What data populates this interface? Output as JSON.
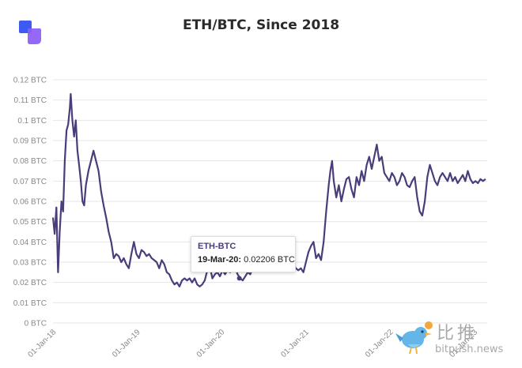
{
  "title": "ETH/BTC, Since 2018",
  "colors": {
    "line": "#4b3c7a",
    "grid": "#e6e6e6",
    "logo_blue": "#3d5bf0",
    "logo_purple": "#8b5cf6"
  },
  "chart_data": {
    "type": "line",
    "title": "ETH/BTC, Since 2018",
    "xlabel": "",
    "ylabel": "",
    "ylim": [
      0,
      0.12
    ],
    "y_ticks": [
      "0 BTC",
      "0.01 BTC",
      "0.02 BTC",
      "0.03 BTC",
      "0.04 BTC",
      "0.05 BTC",
      "0.06 BTC",
      "0.07 BTC",
      "0.08 BTC",
      "0.09 BTC",
      "0.1 BTC",
      "0.11 BTC",
      "0.12 BTC"
    ],
    "x_ticks": [
      "01-Jan-18",
      "01-Jan-19",
      "01-Jan-20",
      "01-Jan-21",
      "01-Jan-22",
      "01-Jan-23"
    ],
    "x_tick_years": [
      0,
      1,
      2,
      3,
      4,
      5
    ],
    "xlim_years": [
      0,
      5.15
    ],
    "series": [
      {
        "name": "ETH-BTC",
        "points": [
          [
            0.0,
            0.052
          ],
          [
            0.02,
            0.044
          ],
          [
            0.04,
            0.057
          ],
          [
            0.06,
            0.025
          ],
          [
            0.08,
            0.045
          ],
          [
            0.1,
            0.06
          ],
          [
            0.12,
            0.055
          ],
          [
            0.14,
            0.08
          ],
          [
            0.16,
            0.095
          ],
          [
            0.18,
            0.098
          ],
          [
            0.2,
            0.106
          ],
          [
            0.21,
            0.113
          ],
          [
            0.23,
            0.1
          ],
          [
            0.25,
            0.092
          ],
          [
            0.27,
            0.1
          ],
          [
            0.29,
            0.085
          ],
          [
            0.31,
            0.078
          ],
          [
            0.33,
            0.07
          ],
          [
            0.35,
            0.06
          ],
          [
            0.37,
            0.058
          ],
          [
            0.39,
            0.068
          ],
          [
            0.42,
            0.075
          ],
          [
            0.45,
            0.08
          ],
          [
            0.48,
            0.085
          ],
          [
            0.51,
            0.08
          ],
          [
            0.54,
            0.075
          ],
          [
            0.57,
            0.065
          ],
          [
            0.6,
            0.058
          ],
          [
            0.63,
            0.052
          ],
          [
            0.66,
            0.045
          ],
          [
            0.69,
            0.04
          ],
          [
            0.72,
            0.032
          ],
          [
            0.75,
            0.034
          ],
          [
            0.78,
            0.033
          ],
          [
            0.81,
            0.03
          ],
          [
            0.84,
            0.032
          ],
          [
            0.87,
            0.029
          ],
          [
            0.9,
            0.027
          ],
          [
            0.93,
            0.034
          ],
          [
            0.96,
            0.04
          ],
          [
            0.99,
            0.034
          ],
          [
            1.02,
            0.032
          ],
          [
            1.05,
            0.036
          ],
          [
            1.08,
            0.035
          ],
          [
            1.11,
            0.033
          ],
          [
            1.14,
            0.034
          ],
          [
            1.17,
            0.032
          ],
          [
            1.2,
            0.031
          ],
          [
            1.23,
            0.03
          ],
          [
            1.26,
            0.027
          ],
          [
            1.29,
            0.031
          ],
          [
            1.32,
            0.029
          ],
          [
            1.35,
            0.025
          ],
          [
            1.38,
            0.024
          ],
          [
            1.41,
            0.021
          ],
          [
            1.44,
            0.019
          ],
          [
            1.47,
            0.02
          ],
          [
            1.5,
            0.018
          ],
          [
            1.53,
            0.021
          ],
          [
            1.56,
            0.022
          ],
          [
            1.59,
            0.021
          ],
          [
            1.62,
            0.022
          ],
          [
            1.65,
            0.02
          ],
          [
            1.68,
            0.022
          ],
          [
            1.71,
            0.019
          ],
          [
            1.74,
            0.018
          ],
          [
            1.77,
            0.019
          ],
          [
            1.8,
            0.021
          ],
          [
            1.83,
            0.026
          ],
          [
            1.86,
            0.028
          ],
          [
            1.89,
            0.022
          ],
          [
            1.92,
            0.024
          ],
          [
            1.95,
            0.025
          ],
          [
            1.98,
            0.023
          ],
          [
            2.01,
            0.026
          ],
          [
            2.04,
            0.024
          ],
          [
            2.07,
            0.026
          ],
          [
            2.1,
            0.025
          ],
          [
            2.13,
            0.026
          ],
          [
            2.16,
            0.027
          ],
          [
            2.19,
            0.024
          ],
          [
            2.22,
            0.022
          ],
          [
            2.25,
            0.021
          ],
          [
            2.28,
            0.023
          ],
          [
            2.31,
            0.025
          ],
          [
            2.34,
            0.024
          ],
          [
            2.37,
            0.027
          ],
          [
            2.4,
            0.028
          ],
          [
            2.43,
            0.03
          ],
          [
            2.46,
            0.032
          ],
          [
            2.49,
            0.034
          ],
          [
            2.52,
            0.031
          ],
          [
            2.55,
            0.029
          ],
          [
            2.58,
            0.031
          ],
          [
            2.61,
            0.033
          ],
          [
            2.64,
            0.035
          ],
          [
            2.67,
            0.034
          ],
          [
            2.7,
            0.032
          ],
          [
            2.73,
            0.031
          ],
          [
            2.76,
            0.03
          ],
          [
            2.79,
            0.028
          ],
          [
            2.82,
            0.03
          ],
          [
            2.85,
            0.029
          ],
          [
            2.88,
            0.027
          ],
          [
            2.91,
            0.026
          ],
          [
            2.94,
            0.027
          ],
          [
            2.97,
            0.025
          ],
          [
            3.0,
            0.03
          ],
          [
            3.03,
            0.035
          ],
          [
            3.06,
            0.038
          ],
          [
            3.09,
            0.04
          ],
          [
            3.12,
            0.032
          ],
          [
            3.15,
            0.034
          ],
          [
            3.18,
            0.031
          ],
          [
            3.21,
            0.04
          ],
          [
            3.24,
            0.055
          ],
          [
            3.27,
            0.068
          ],
          [
            3.29,
            0.075
          ],
          [
            3.31,
            0.08
          ],
          [
            3.33,
            0.07
          ],
          [
            3.36,
            0.062
          ],
          [
            3.39,
            0.068
          ],
          [
            3.42,
            0.06
          ],
          [
            3.45,
            0.066
          ],
          [
            3.48,
            0.071
          ],
          [
            3.51,
            0.072
          ],
          [
            3.54,
            0.066
          ],
          [
            3.57,
            0.062
          ],
          [
            3.6,
            0.072
          ],
          [
            3.63,
            0.068
          ],
          [
            3.66,
            0.075
          ],
          [
            3.69,
            0.07
          ],
          [
            3.72,
            0.078
          ],
          [
            3.75,
            0.082
          ],
          [
            3.78,
            0.076
          ],
          [
            3.81,
            0.082
          ],
          [
            3.84,
            0.088
          ],
          [
            3.87,
            0.08
          ],
          [
            3.9,
            0.082
          ],
          [
            3.93,
            0.074
          ],
          [
            3.96,
            0.072
          ],
          [
            3.99,
            0.07
          ],
          [
            4.02,
            0.074
          ],
          [
            4.05,
            0.072
          ],
          [
            4.08,
            0.068
          ],
          [
            4.11,
            0.07
          ],
          [
            4.14,
            0.074
          ],
          [
            4.17,
            0.072
          ],
          [
            4.2,
            0.068
          ],
          [
            4.23,
            0.067
          ],
          [
            4.26,
            0.07
          ],
          [
            4.29,
            0.072
          ],
          [
            4.32,
            0.062
          ],
          [
            4.35,
            0.055
          ],
          [
            4.38,
            0.053
          ],
          [
            4.41,
            0.06
          ],
          [
            4.44,
            0.072
          ],
          [
            4.47,
            0.078
          ],
          [
            4.5,
            0.074
          ],
          [
            4.53,
            0.07
          ],
          [
            4.56,
            0.068
          ],
          [
            4.59,
            0.072
          ],
          [
            4.62,
            0.074
          ],
          [
            4.65,
            0.072
          ],
          [
            4.68,
            0.07
          ],
          [
            4.71,
            0.074
          ],
          [
            4.74,
            0.07
          ],
          [
            4.77,
            0.072
          ],
          [
            4.8,
            0.069
          ],
          [
            4.83,
            0.071
          ],
          [
            4.86,
            0.073
          ],
          [
            4.89,
            0.07
          ],
          [
            4.92,
            0.075
          ],
          [
            4.95,
            0.071
          ],
          [
            4.98,
            0.069
          ],
          [
            5.01,
            0.07
          ],
          [
            5.04,
            0.069
          ],
          [
            5.07,
            0.071
          ],
          [
            5.1,
            0.07
          ],
          [
            5.13,
            0.071
          ]
        ]
      }
    ],
    "tooltip": {
      "series": "ETH-BTC",
      "date": "19-Mar-20:",
      "value": "0.02206 BTC",
      "x_year": 2.21,
      "y": 0.02206
    }
  },
  "watermark": {
    "cn": "比推",
    "url": "bitpush.news"
  }
}
